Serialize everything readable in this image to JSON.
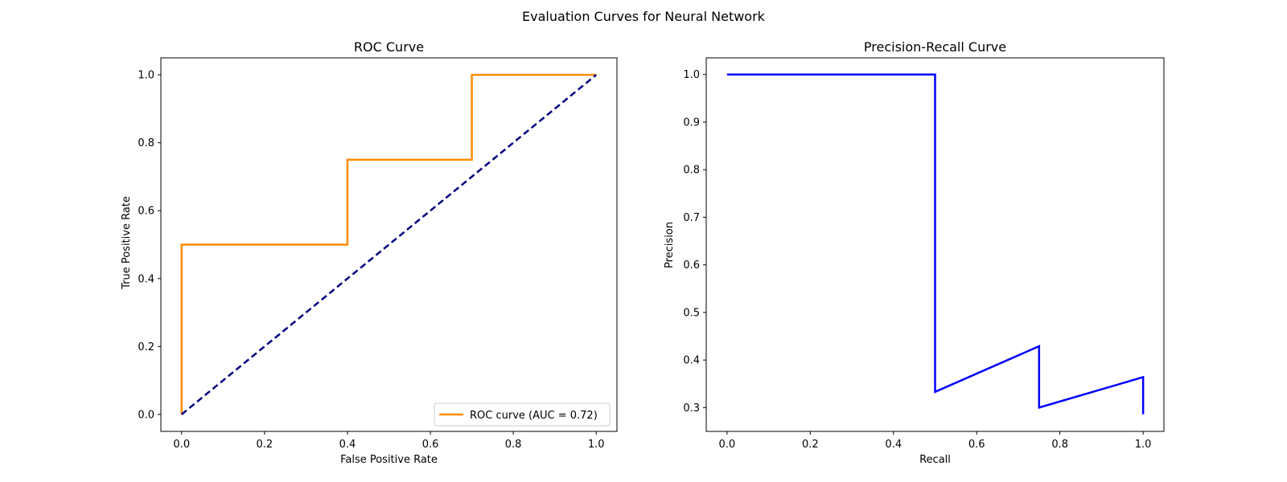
{
  "figure_title": "Evaluation Curves for Neural Network",
  "chart_data": [
    {
      "type": "line",
      "title": "ROC Curve",
      "xlabel": "False Positive Rate",
      "ylabel": "True Positive Rate",
      "xlim": [
        -0.05,
        1.05
      ],
      "ylim": [
        -0.05,
        1.05
      ],
      "xticks": [
        "0.0",
        "0.2",
        "0.4",
        "0.6",
        "0.8",
        "1.0"
      ],
      "yticks": [
        "0.0",
        "0.2",
        "0.4",
        "0.6",
        "0.8",
        "1.0"
      ],
      "grid": false,
      "legend_position": "lower-right",
      "series": [
        {
          "name": "ROC curve (AUC = 0.72)",
          "color": "#ff8c00",
          "style": "solid",
          "x": [
            0.0,
            0.0,
            0.4,
            0.4,
            0.7,
            0.7,
            1.0
          ],
          "y": [
            0.0,
            0.5,
            0.5,
            0.75,
            0.75,
            1.0,
            1.0
          ]
        },
        {
          "color": "#000080",
          "style": "dashed",
          "x": [
            0.0,
            1.0
          ],
          "y": [
            0.0,
            1.0
          ]
        }
      ]
    },
    {
      "type": "line",
      "title": "Precision-Recall Curve",
      "xlabel": "Recall",
      "ylabel": "Precision",
      "xlim": [
        -0.05,
        1.05
      ],
      "ylim": [
        0.25,
        1.035
      ],
      "xticks": [
        "0.0",
        "0.2",
        "0.4",
        "0.6",
        "0.8",
        "1.0"
      ],
      "yticks": [
        "0.3",
        "0.4",
        "0.5",
        "0.6",
        "0.7",
        "0.8",
        "0.9",
        "1.0"
      ],
      "grid": false,
      "series": [
        {
          "color": "#0000ff",
          "style": "solid",
          "x": [
            0.0,
            0.5,
            0.5,
            0.75,
            0.75,
            1.0,
            1.0
          ],
          "y": [
            1.0,
            1.0,
            0.333,
            0.429,
            0.3,
            0.364,
            0.286
          ]
        }
      ]
    }
  ]
}
